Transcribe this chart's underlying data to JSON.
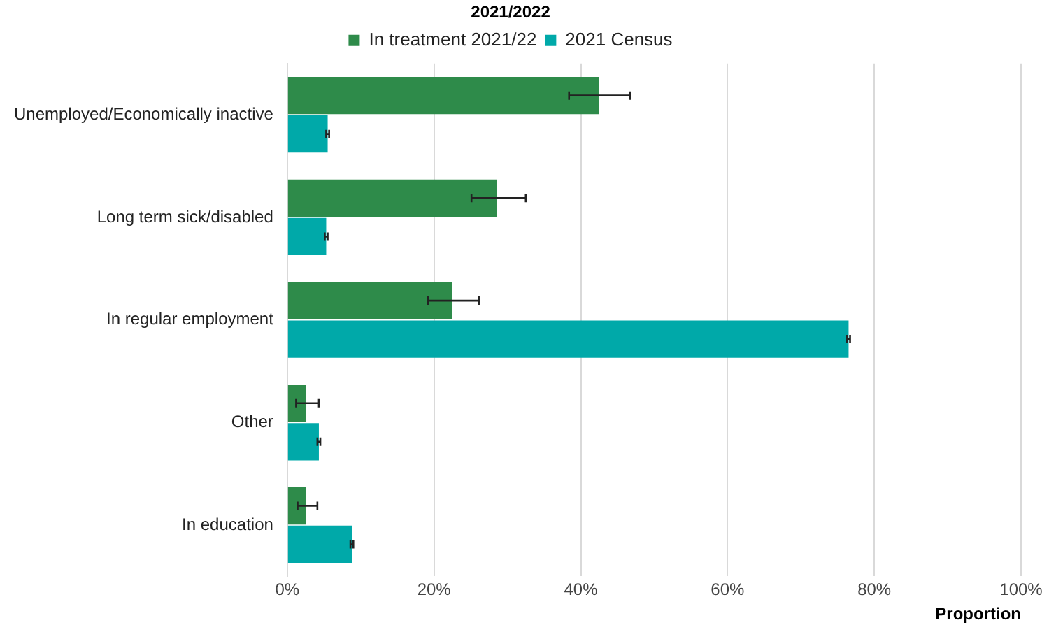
{
  "chart_data": {
    "type": "bar",
    "orientation": "horizontal",
    "title": "2021/2022",
    "xlabel": "Proportion",
    "categories": [
      "Unemployed/Economically inactive",
      "Long term sick/disabled",
      "In regular employment",
      "Other",
      "In education"
    ],
    "series": [
      {
        "name": "In treatment 2021/22",
        "color": "#2e8b4a",
        "values": [
          42.5,
          28.6,
          22.5,
          2.5,
          2.5
        ],
        "errors": [
          [
            38.4,
            46.7
          ],
          [
            25.1,
            32.5
          ],
          [
            19.2,
            26.1
          ],
          [
            1.2,
            4.3
          ],
          [
            1.4,
            4.1
          ]
        ]
      },
      {
        "name": "2021 Census",
        "color": "#00a9a9",
        "values": [
          5.5,
          5.3,
          76.5,
          4.3,
          8.8
        ],
        "errors": [
          0.2,
          0.2,
          0.2,
          0.2,
          0.2
        ]
      }
    ],
    "xlim": [
      0,
      100
    ],
    "xticks": [
      {
        "value": 0,
        "label": "0%"
      },
      {
        "value": 20,
        "label": "20%"
      },
      {
        "value": 40,
        "label": "40%"
      },
      {
        "value": 60,
        "label": "60%"
      },
      {
        "value": 80,
        "label": "80%"
      },
      {
        "value": 100,
        "label": "100%"
      }
    ],
    "grid": "x",
    "legend": "top"
  }
}
